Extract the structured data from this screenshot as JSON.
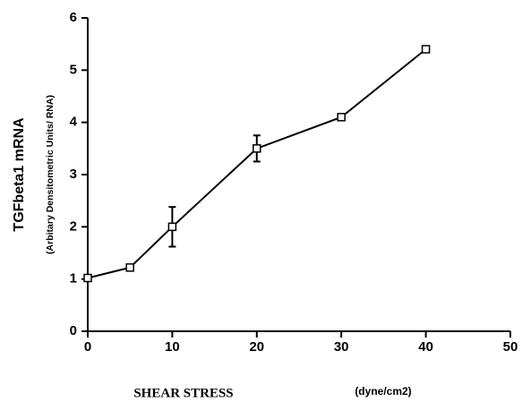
{
  "chart_data": {
    "type": "line",
    "y_label": "TGFbeta1  mRNA",
    "y_sublabel": "(Arbitary Densitometric Units/ RNA)",
    "x_label": "SHEAR STRESS",
    "x_label_units": "(dyne/cm2)",
    "x": [
      0,
      5,
      10,
      20,
      30,
      40
    ],
    "series": [
      {
        "values": [
          1.02,
          1.22,
          2.0,
          3.5,
          4.1,
          5.4
        ],
        "errors": [
          null,
          null,
          0.38,
          0.25,
          null,
          null
        ],
        "color": "#000000"
      }
    ],
    "xlim": [
      0,
      50
    ],
    "xticks": [
      0,
      10,
      20,
      30,
      40,
      50
    ],
    "ylim": [
      0,
      6
    ],
    "yticks": [
      0,
      1,
      2,
      3,
      4,
      5,
      6
    ]
  }
}
